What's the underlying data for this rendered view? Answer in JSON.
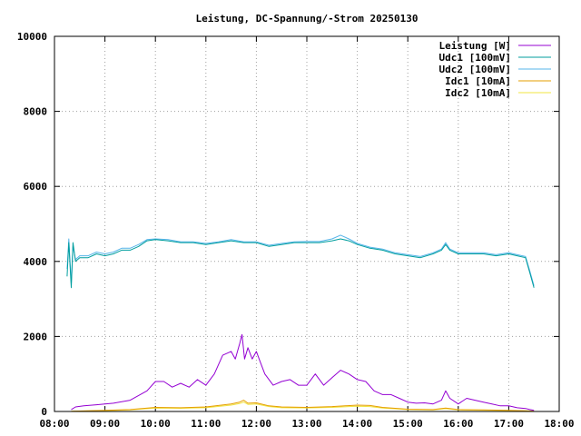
{
  "chart_data": {
    "type": "line",
    "title": "Leistung, DC-Spannung/-Strom 20250130",
    "xlabel": "",
    "ylabel": "",
    "xlim": [
      "08:00",
      "18:00"
    ],
    "ylim": [
      0,
      10000
    ],
    "x_ticks": [
      "08:00",
      "09:00",
      "10:00",
      "11:00",
      "12:00",
      "13:00",
      "14:00",
      "15:00",
      "16:00",
      "17:00",
      "18:00"
    ],
    "y_ticks": [
      "0",
      "2000",
      "4000",
      "6000",
      "8000",
      "10000"
    ],
    "grid": true,
    "legend_position": "top-right",
    "series": [
      {
        "name": "Leistung [W]",
        "color": "#9400d3",
        "x": [
          "08:20",
          "08:25",
          "08:35",
          "08:50",
          "09:10",
          "09:30",
          "09:50",
          "10:00",
          "10:10",
          "10:20",
          "10:30",
          "10:40",
          "10:50",
          "11:00",
          "11:10",
          "11:20",
          "11:30",
          "11:35",
          "11:40",
          "11:43",
          "11:46",
          "11:50",
          "11:55",
          "12:00",
          "12:05",
          "12:10",
          "12:20",
          "12:30",
          "12:40",
          "12:50",
          "13:00",
          "13:10",
          "13:20",
          "13:30",
          "13:40",
          "13:50",
          "14:00",
          "14:10",
          "14:20",
          "14:30",
          "14:40",
          "14:50",
          "15:00",
          "15:10",
          "15:20",
          "15:30",
          "15:40",
          "15:45",
          "15:50",
          "16:00",
          "16:10",
          "16:20",
          "16:30",
          "16:40",
          "16:50",
          "17:00",
          "17:10",
          "17:20",
          "17:25",
          "17:30"
        ],
        "values": [
          50,
          120,
          150,
          180,
          220,
          300,
          550,
          800,
          800,
          650,
          750,
          650,
          850,
          700,
          1000,
          1500,
          1600,
          1400,
          1800,
          2050,
          1400,
          1700,
          1400,
          1600,
          1300,
          1000,
          700,
          800,
          850,
          700,
          700,
          1000,
          700,
          900,
          1100,
          1000,
          850,
          800,
          550,
          450,
          450,
          350,
          250,
          220,
          230,
          200,
          300,
          550,
          350,
          200,
          350,
          300,
          250,
          200,
          150,
          150,
          100,
          80,
          50,
          30
        ]
      },
      {
        "name": "Udc1 [100mV]",
        "color": "#009e9e",
        "x": [
          "08:15",
          "08:17",
          "08:20",
          "08:22",
          "08:25",
          "08:30",
          "08:40",
          "08:50",
          "09:00",
          "09:10",
          "09:20",
          "09:30",
          "09:40",
          "09:50",
          "10:00",
          "10:15",
          "10:30",
          "10:45",
          "11:00",
          "11:15",
          "11:30",
          "11:45",
          "12:00",
          "12:15",
          "12:30",
          "12:45",
          "13:00",
          "13:15",
          "13:30",
          "13:40",
          "13:50",
          "14:00",
          "14:15",
          "14:30",
          "14:45",
          "15:00",
          "15:15",
          "15:30",
          "15:40",
          "15:45",
          "15:50",
          "16:00",
          "16:15",
          "16:30",
          "16:45",
          "17:00",
          "17:10",
          "17:20",
          "17:25",
          "17:30"
        ],
        "values": [
          3600,
          4500,
          3300,
          4500,
          4000,
          4100,
          4100,
          4200,
          4150,
          4200,
          4300,
          4300,
          4400,
          4550,
          4580,
          4550,
          4500,
          4500,
          4450,
          4500,
          4550,
          4500,
          4500,
          4400,
          4450,
          4500,
          4500,
          4500,
          4550,
          4600,
          4550,
          4450,
          4350,
          4300,
          4200,
          4150,
          4100,
          4200,
          4300,
          4450,
          4300,
          4200,
          4200,
          4200,
          4150,
          4200,
          4150,
          4100,
          3700,
          3300
        ]
      },
      {
        "name": "Udc2 [100mV]",
        "color": "#56b4e9",
        "x": [
          "08:15",
          "08:17",
          "08:20",
          "08:22",
          "08:25",
          "08:30",
          "08:40",
          "08:50",
          "09:00",
          "09:10",
          "09:20",
          "09:30",
          "09:40",
          "09:50",
          "10:00",
          "10:15",
          "10:30",
          "10:45",
          "11:00",
          "11:15",
          "11:30",
          "11:45",
          "12:00",
          "12:15",
          "12:30",
          "12:45",
          "13:00",
          "13:15",
          "13:30",
          "13:40",
          "13:50",
          "14:00",
          "14:15",
          "14:30",
          "14:45",
          "15:00",
          "15:15",
          "15:30",
          "15:40",
          "15:45",
          "15:50",
          "16:00",
          "16:15",
          "16:30",
          "16:45",
          "17:00",
          "17:10",
          "17:20",
          "17:25",
          "17:30"
        ],
        "values": [
          3800,
          4600,
          3400,
          4400,
          4050,
          4150,
          4150,
          4250,
          4200,
          4250,
          4350,
          4350,
          4450,
          4580,
          4600,
          4580,
          4520,
          4520,
          4480,
          4520,
          4580,
          4520,
          4520,
          4430,
          4480,
          4520,
          4530,
          4530,
          4600,
          4700,
          4600,
          4480,
          4380,
          4330,
          4230,
          4180,
          4130,
          4230,
          4330,
          4500,
          4330,
          4230,
          4230,
          4230,
          4180,
          4230,
          4180,
          4130,
          3750,
          3350
        ]
      },
      {
        "name": "Idc1 [10mA]",
        "color": "#e69f00",
        "x": [
          "08:20",
          "08:40",
          "09:00",
          "09:30",
          "10:00",
          "10:30",
          "11:00",
          "11:30",
          "11:40",
          "11:45",
          "11:50",
          "12:00",
          "12:15",
          "12:30",
          "13:00",
          "13:30",
          "14:00",
          "14:15",
          "14:30",
          "15:00",
          "15:30",
          "15:45",
          "16:00",
          "16:30",
          "17:00",
          "17:20",
          "17:30"
        ],
        "values": [
          5,
          20,
          30,
          50,
          110,
          100,
          120,
          200,
          250,
          300,
          220,
          230,
          150,
          120,
          110,
          130,
          170,
          160,
          110,
          60,
          50,
          90,
          50,
          40,
          30,
          20,
          10
        ]
      },
      {
        "name": "Idc2 [10mA]",
        "color": "#f0e442",
        "x": [
          "08:20",
          "08:40",
          "09:00",
          "09:30",
          "10:00",
          "10:30",
          "11:00",
          "11:30",
          "11:40",
          "11:45",
          "11:50",
          "12:00",
          "12:15",
          "12:30",
          "13:00",
          "13:30",
          "14:00",
          "14:15",
          "14:30",
          "15:00",
          "15:30",
          "15:45",
          "16:00",
          "16:30",
          "17:00",
          "17:20",
          "17:30"
        ],
        "values": [
          4,
          15,
          25,
          40,
          90,
          85,
          100,
          170,
          210,
          250,
          190,
          200,
          130,
          100,
          95,
          110,
          140,
          130,
          90,
          50,
          40,
          75,
          40,
          35,
          25,
          15,
          8
        ]
      }
    ]
  }
}
